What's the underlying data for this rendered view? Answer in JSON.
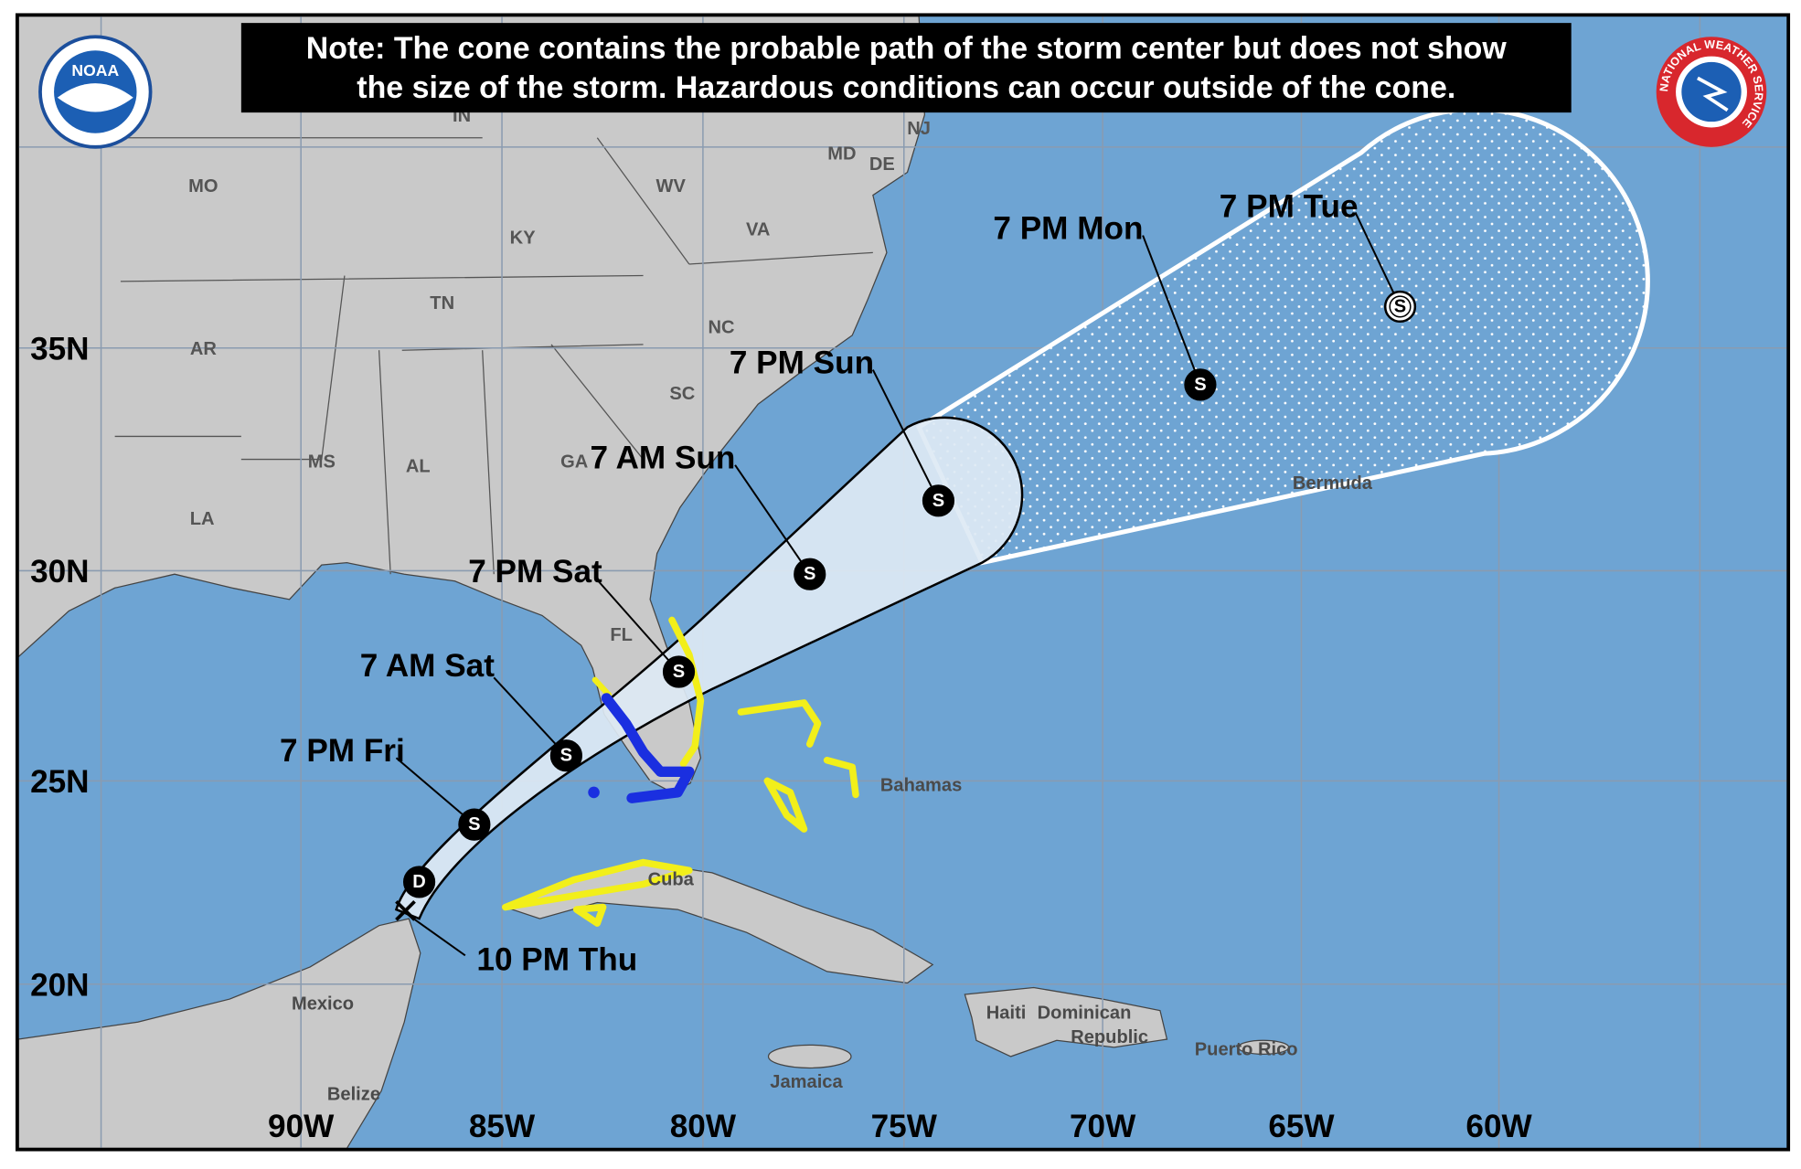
{
  "note": [
    "Note: The cone contains the probable path of the storm center but does not show",
    "the size of the storm. Hazardous conditions can occur outside of the cone."
  ],
  "logos": {
    "noaa": "NOAA",
    "nws": "NATIONAL WEATHER SERVICE"
  },
  "grid": {
    "longitudes": [
      "90W",
      "85W",
      "80W",
      "75W",
      "70W",
      "65W",
      "60W"
    ],
    "latitudes": [
      "35N",
      "30N",
      "25N",
      "20N"
    ]
  },
  "regions": [
    "MO",
    "KY",
    "WV",
    "VA",
    "TN",
    "NC",
    "AR",
    "SC",
    "MS",
    "AL",
    "GA",
    "LA",
    "FL",
    "IN",
    "NJ",
    "MD",
    "DE"
  ],
  "places": {
    "bermuda": "Bermuda",
    "bahamas": "Bahamas",
    "cuba": "Cuba",
    "mexico": "Mexico",
    "belize": "Belize",
    "haiti": "Haiti",
    "dominican_republic": [
      "Dominican",
      "Republic"
    ],
    "puerto_rico": "Puerto Rico",
    "jamaica": "Jamaica"
  },
  "track": {
    "current": "10 PM Thu",
    "points": [
      {
        "symbol": "D"
      },
      {
        "symbol": "S",
        "time": "7 PM Fri"
      },
      {
        "symbol": "S",
        "time": "7 AM Sat"
      },
      {
        "symbol": "S",
        "time": "7 PM Sat"
      },
      {
        "symbol": "S",
        "time": "7 AM Sun"
      },
      {
        "symbol": "S",
        "time": "7 PM Sun"
      },
      {
        "symbol": "S",
        "time": "7 PM Mon"
      },
      {
        "symbol": "S",
        "time": "7 PM Tue"
      }
    ]
  }
}
